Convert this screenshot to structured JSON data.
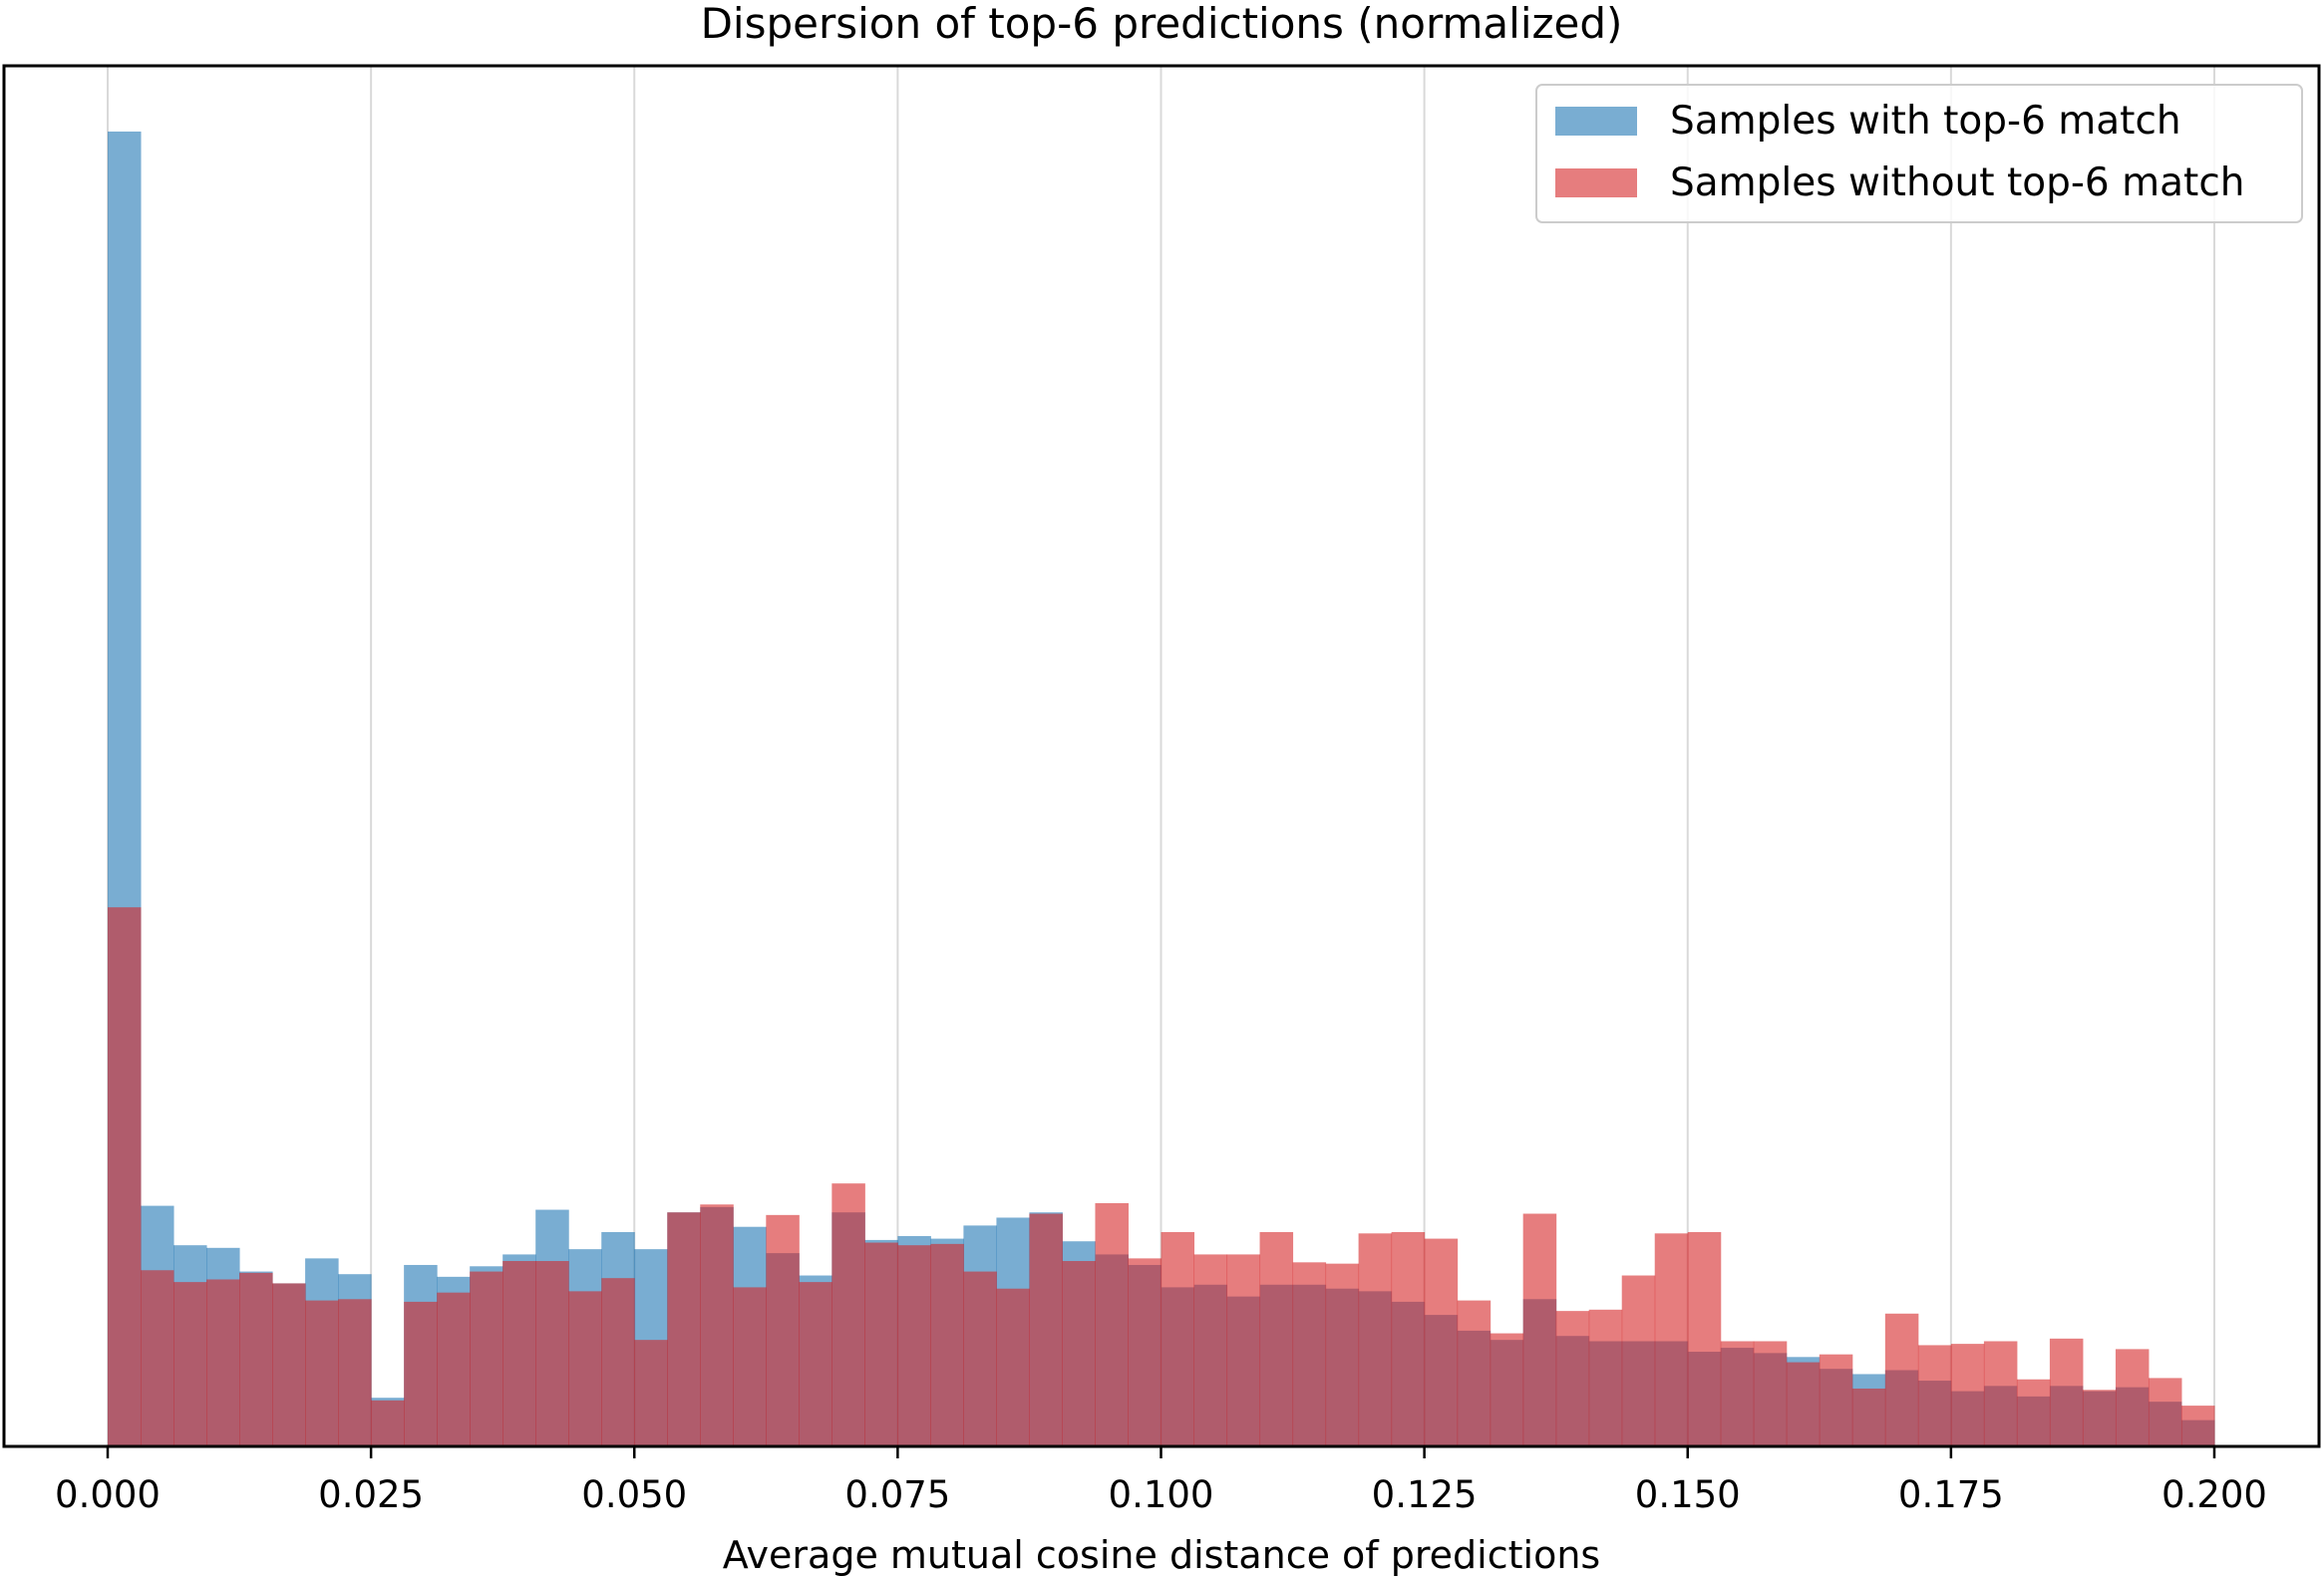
{
  "chart_data": {
    "type": "bar",
    "histogram": true,
    "title": "Dispersion of top-6 predictions (normalized)",
    "xlabel": "Average mutual cosine distance of predictions",
    "ylabel": "",
    "xlim": [
      -0.01,
      0.2
    ],
    "ylim": [
      0,
      1.05
    ],
    "xticks": [
      "0.000",
      "0.025",
      "0.050",
      "0.075",
      "0.100",
      "0.125",
      "0.150",
      "0.175",
      "0.200"
    ],
    "yticks_shown": false,
    "grid": "vertical",
    "legend_position": "top-right",
    "bin_width": 0.003125,
    "x": [
      0.0,
      0.003,
      0.006,
      0.009,
      0.013,
      0.016,
      0.019,
      0.022,
      0.025,
      0.028,
      0.031,
      0.034,
      0.038,
      0.041,
      0.044,
      0.047,
      0.05,
      0.053,
      0.056,
      0.059,
      0.063,
      0.066,
      0.069,
      0.072,
      0.075,
      0.078,
      0.081,
      0.084,
      0.088,
      0.091,
      0.094,
      0.097,
      0.1,
      0.103,
      0.106,
      0.109,
      0.113,
      0.116,
      0.119,
      0.122,
      0.125,
      0.128,
      0.131,
      0.134,
      0.138,
      0.141,
      0.144,
      0.147,
      0.15,
      0.153,
      0.156,
      0.159,
      0.163,
      0.166,
      0.169,
      0.172,
      0.175,
      0.178,
      0.181,
      0.184,
      0.188,
      0.191,
      0.194,
      0.197
    ],
    "series": [
      {
        "name": "Samples with top-6 match",
        "color": "#1f77b4",
        "values": [
          1.0,
          0.183,
          0.153,
          0.151,
          0.133,
          0.124,
          0.143,
          0.131,
          0.037,
          0.138,
          0.129,
          0.137,
          0.146,
          0.18,
          0.15,
          0.163,
          0.15,
          0.178,
          0.182,
          0.167,
          0.147,
          0.13,
          0.178,
          0.157,
          0.16,
          0.158,
          0.168,
          0.174,
          0.178,
          0.156,
          0.146,
          0.138,
          0.121,
          0.123,
          0.114,
          0.123,
          0.123,
          0.12,
          0.118,
          0.11,
          0.1,
          0.088,
          0.081,
          0.112,
          0.084,
          0.08,
          0.08,
          0.08,
          0.072,
          0.075,
          0.071,
          0.068,
          0.059,
          0.055,
          0.058,
          0.05,
          0.042,
          0.046,
          0.038,
          0.046,
          0.042,
          0.045,
          0.034,
          0.02
        ]
      },
      {
        "name": "Samples without top-6 match",
        "color": "#d62728",
        "values": [
          0.41,
          0.134,
          0.125,
          0.127,
          0.132,
          0.124,
          0.111,
          0.112,
          0.035,
          0.11,
          0.117,
          0.133,
          0.141,
          0.141,
          0.118,
          0.128,
          0.081,
          0.178,
          0.184,
          0.121,
          0.176,
          0.125,
          0.2,
          0.155,
          0.153,
          0.154,
          0.133,
          0.12,
          0.177,
          0.141,
          0.185,
          0.143,
          0.163,
          0.146,
          0.146,
          0.163,
          0.14,
          0.139,
          0.162,
          0.163,
          0.158,
          0.111,
          0.086,
          0.177,
          0.103,
          0.104,
          0.13,
          0.162,
          0.163,
          0.08,
          0.08,
          0.064,
          0.07,
          0.044,
          0.101,
          0.077,
          0.078,
          0.08,
          0.051,
          0.082,
          0.043,
          0.074,
          0.052,
          0.031
        ]
      }
    ]
  }
}
